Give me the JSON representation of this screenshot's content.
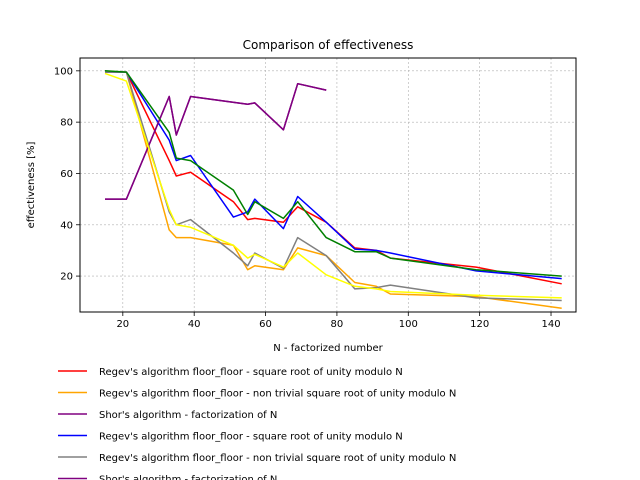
{
  "chart_data": {
    "type": "line",
    "title": "Comparison of effectiveness",
    "xlabel": "N - factorized number",
    "ylabel": "effectiveness [%]",
    "xlim": [
      8,
      147
    ],
    "ylim": [
      6,
      105
    ],
    "xticks": [
      20,
      40,
      60,
      80,
      100,
      120,
      140
    ],
    "yticks": [
      20,
      40,
      60,
      80,
      100
    ],
    "grid": true,
    "legend_position": "below plot",
    "series": [
      {
        "name": "Regev's algorithm floor_floor - square root of unity modulo N",
        "color": "#ff0000",
        "x": [
          15,
          21,
          33,
          35,
          39,
          51,
          55,
          57,
          65,
          69,
          77,
          85,
          91,
          95,
          119,
          143
        ],
        "y": [
          99.5,
          99.5,
          65,
          59,
          60.5,
          49,
          42,
          42.5,
          41,
          47,
          41,
          31,
          30,
          27,
          23.5,
          17
        ]
      },
      {
        "name": "Regev's algorithm floor_floor - non trivial square root of unity modulo N",
        "color": "#ffa500",
        "x": [
          15,
          21,
          33,
          35,
          39,
          51,
          55,
          57,
          65,
          69,
          77,
          85,
          91,
          95,
          119,
          143
        ],
        "y": [
          99.5,
          99.5,
          38,
          35,
          35,
          32,
          22.5,
          24,
          22.5,
          31,
          28,
          17.5,
          16,
          13,
          12,
          7.5
        ]
      },
      {
        "name": "Shor's algorithm - factorization of N",
        "color": "#800080",
        "x": [
          15,
          21,
          33,
          35,
          39,
          55,
          57,
          65,
          69,
          77
        ],
        "y": [
          50,
          50,
          90,
          75,
          90,
          87,
          87.5,
          77,
          95,
          92.5
        ]
      },
      {
        "name": "Regev's algorithm floor_floor - square root of unity modulo N",
        "color": "#0000ff",
        "x": [
          15,
          21,
          33,
          35,
          39,
          51,
          55,
          57,
          65,
          69,
          77,
          85,
          91,
          95,
          119,
          143
        ],
        "y": [
          99.5,
          99.5,
          73,
          65,
          67,
          43,
          45,
          50,
          38.5,
          51,
          41,
          30.5,
          30,
          29,
          22,
          19
        ]
      },
      {
        "name": "Regev's algorithm floor_floor - non trivial square root of unity modulo N",
        "color": "#808080",
        "x": [
          15,
          21,
          33,
          35,
          39,
          51,
          55,
          57,
          65,
          69,
          77,
          85,
          91,
          95,
          119,
          143
        ],
        "y": [
          99.5,
          99.5,
          45,
          40,
          42,
          29,
          24,
          29,
          23,
          35,
          28,
          15,
          15.5,
          16.5,
          11.5,
          10.5
        ]
      },
      {
        "name": "Shor's algorithm - factorization of N",
        "color": "#800080",
        "x": [
          15,
          21,
          33,
          35,
          39,
          55,
          57,
          65,
          69,
          77
        ],
        "y": [
          50,
          50,
          90,
          75,
          90,
          87,
          87.5,
          77,
          95,
          92.5
        ]
      },
      {
        "name": "",
        "color": "#008000",
        "x": [
          15,
          21,
          33,
          35,
          39,
          51,
          55,
          57,
          65,
          69,
          77,
          85,
          91,
          95,
          119,
          143
        ],
        "y": [
          100,
          99.5,
          76,
          66,
          65,
          53.5,
          44,
          49,
          42.5,
          49,
          35,
          29.5,
          29.5,
          27,
          22.5,
          20
        ]
      },
      {
        "name": "",
        "color": "#ffff00",
        "x": [
          15,
          21,
          33,
          35,
          39,
          51,
          55,
          57,
          65,
          69,
          77,
          85,
          91,
          95,
          119,
          143
        ],
        "y": [
          99,
          96,
          46,
          40,
          39,
          32,
          27,
          28.5,
          23.5,
          29,
          20.5,
          16,
          15,
          14,
          12.5,
          11.5
        ]
      }
    ]
  }
}
